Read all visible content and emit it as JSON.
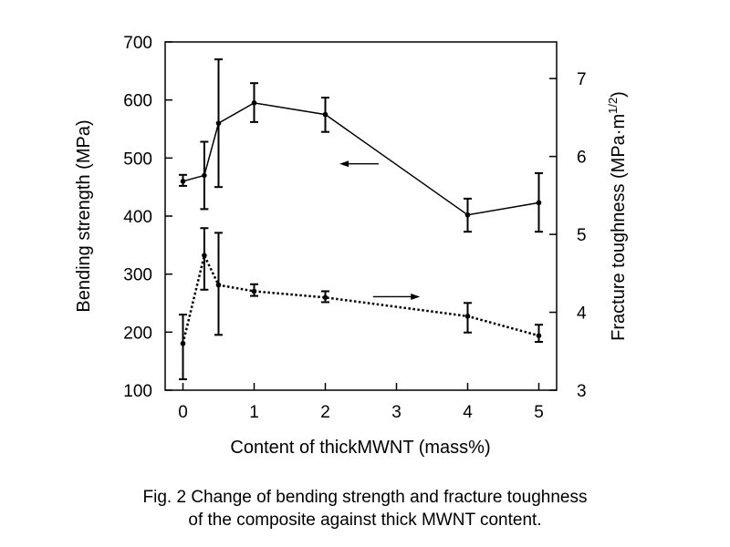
{
  "chart_data": {
    "type": "line",
    "x_label": "Content of thickMWNT (mass%)",
    "y_left_label": "Bending strength (MPa)",
    "y_right_label_main": "Fracture toughness (MPa·m",
    "y_right_label_sup": "1/2",
    "y_right_label_end": ")",
    "x_ticks": [
      0,
      1,
      2,
      3,
      4,
      5
    ],
    "xlim": [
      -0.25,
      5.25
    ],
    "y_left_ticks": [
      100,
      200,
      300,
      400,
      500,
      600,
      700
    ],
    "y_left_lim": [
      100,
      700
    ],
    "y_right_ticks": [
      3,
      4,
      5,
      6,
      7
    ],
    "y_right_lim": [
      3,
      7.47
    ],
    "grid": false,
    "series": [
      {
        "axis": "left",
        "style": "solid",
        "arrow": "left",
        "x": [
          0,
          0.3,
          0.5,
          1,
          2,
          4,
          5
        ],
        "y": [
          460,
          470,
          560,
          595,
          575,
          402,
          423
        ],
        "err_low": [
          452,
          412,
          450,
          562,
          545,
          373,
          373
        ],
        "err_high": [
          471,
          528,
          670,
          629,
          604,
          430,
          474
        ]
      },
      {
        "axis": "right",
        "style": "dotted",
        "arrow": "right",
        "x": [
          0,
          0.3,
          0.5,
          1,
          2,
          4,
          5
        ],
        "y": [
          3.6,
          4.73,
          4.35,
          4.27,
          4.19,
          3.95,
          3.7
        ],
        "err_low": [
          3.14,
          4.29,
          3.71,
          4.21,
          4.13,
          3.74,
          3.62
        ],
        "err_high": [
          3.97,
          5.08,
          5.02,
          4.36,
          4.27,
          4.12,
          3.84
        ]
      }
    ]
  },
  "caption": {
    "line1": "Fig. 2 Change of bending strength and fracture toughness",
    "line2": "of the composite against thick MWNT content."
  }
}
